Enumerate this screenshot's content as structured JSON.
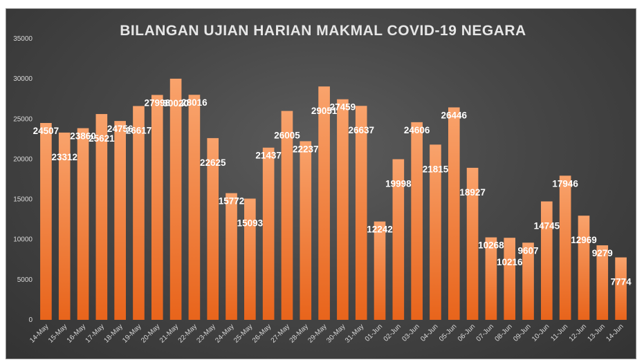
{
  "chart_data": {
    "type": "bar",
    "title": "BILANGAN UJIAN HARIAN MAKMAL COVID-19 NEGARA",
    "xlabel": "",
    "ylabel": "",
    "ylim": [
      0,
      35000
    ],
    "yticks": [
      "0",
      "5000",
      "10000",
      "15000",
      "20000",
      "25000",
      "30000",
      "35000"
    ],
    "grid": false,
    "legend": "none",
    "categories": [
      "14-May",
      "15-May",
      "16-May",
      "17-May",
      "18-May",
      "19-May",
      "20-May",
      "21-May",
      "22-May",
      "23-May",
      "24-May",
      "25-May",
      "26-May",
      "27-May",
      "28-May",
      "29-May",
      "30-May",
      "31-May",
      "01-Jun",
      "02-Jun",
      "03-Jun",
      "04-Jun",
      "05-Jun",
      "06-Jun",
      "07-Jun",
      "08-Jun",
      "09-Jun",
      "10-Jun",
      "11-Jun",
      "12-Jun",
      "13-Jun",
      "14-Jun"
    ],
    "values": [
      24507,
      23312,
      23860,
      25621,
      24756,
      26617,
      27998,
      30020,
      28016,
      22625,
      15772,
      15093,
      21437,
      26005,
      22237,
      29051,
      27459,
      26637,
      12242,
      19998,
      24606,
      21815,
      26446,
      18927,
      10268,
      10216,
      9607,
      14745,
      17946,
      12969,
      9279,
      7774
    ],
    "data_labels": [
      "24507",
      "23312",
      "23860",
      "25621",
      "24756",
      "26617",
      "27998",
      "30020",
      "28016",
      "22625",
      "15772",
      "15093",
      "21437",
      "26005",
      "22237",
      "29051",
      "27459",
      "26637",
      "12242",
      "19998",
      "24606",
      "21815",
      "26446",
      "18927",
      "10268",
      "10216",
      "9607",
      "14745",
      "17946",
      "12969",
      "9279",
      "7774"
    ],
    "colors": {
      "bar_top": "#f9a36c",
      "bar_bottom": "#e8641b",
      "background": "#474747",
      "text": "#d9d9d9"
    }
  }
}
